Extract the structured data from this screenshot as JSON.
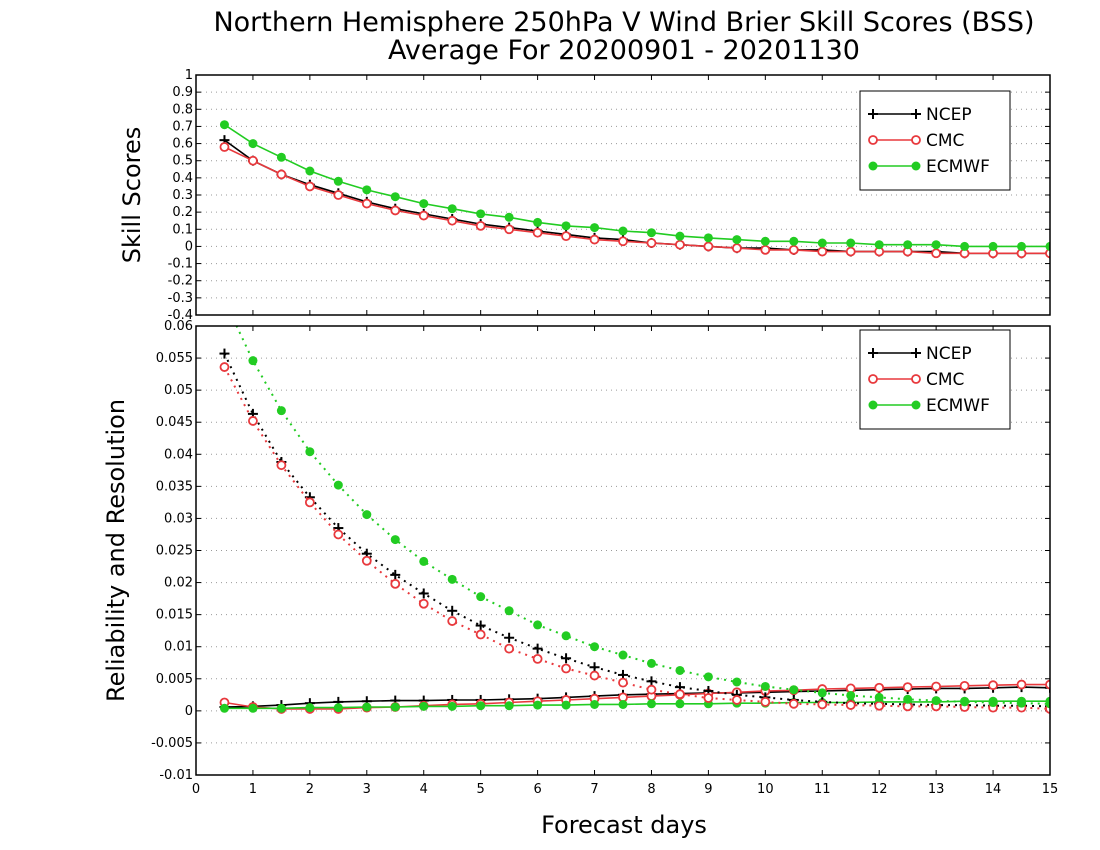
{
  "title_line1": "Northern Hemisphere 250hPa V Wind Brier Skill Scores (BSS)",
  "title_line2": "Average For 20200901 - 20201130",
  "xlabel": "Forecast days",
  "colors": {
    "NCEP": "#000000",
    "CMC": "#e8393d",
    "ECMWF": "#22cc22"
  },
  "chart_data": [
    {
      "type": "line",
      "ylabel": "Skill Scores",
      "xlim": [
        0,
        15
      ],
      "ylim": [
        -0.4,
        1
      ],
      "xticks": [
        "0",
        "1",
        "2",
        "3",
        "4",
        "5",
        "6",
        "7",
        "8",
        "9",
        "10",
        "11",
        "12",
        "13",
        "14",
        "15"
      ],
      "yticks": [
        "-0.4",
        "-0.3",
        "-0.2",
        "-0.1",
        "0",
        "0.1",
        "0.2",
        "0.3",
        "0.4",
        "0.5",
        "0.6",
        "0.7",
        "0.8",
        "0.9",
        "1"
      ],
      "grid": true,
      "legend_position": "top-right",
      "x": [
        0.5,
        1,
        1.5,
        2,
        2.5,
        3,
        3.5,
        4,
        4.5,
        5,
        5.5,
        6,
        6.5,
        7,
        7.5,
        8,
        8.5,
        9,
        9.5,
        10,
        10.5,
        11,
        11.5,
        12,
        12.5,
        13,
        13.5,
        14,
        14.5,
        15
      ],
      "series": [
        {
          "name": "NCEP",
          "style": "solid",
          "marker": "plus",
          "values": [
            0.62,
            0.5,
            0.42,
            0.36,
            0.31,
            0.26,
            0.22,
            0.19,
            0.16,
            0.13,
            0.11,
            0.09,
            0.07,
            0.05,
            0.04,
            0.02,
            0.01,
            0.0,
            -0.01,
            -0.01,
            -0.02,
            -0.02,
            -0.03,
            -0.03,
            -0.03,
            -0.03,
            -0.04,
            -0.04,
            -0.04,
            -0.04
          ]
        },
        {
          "name": "CMC",
          "style": "solid",
          "marker": "circle-open",
          "values": [
            0.58,
            0.5,
            0.42,
            0.35,
            0.3,
            0.25,
            0.21,
            0.18,
            0.15,
            0.12,
            0.1,
            0.08,
            0.06,
            0.04,
            0.03,
            0.02,
            0.01,
            0.0,
            -0.01,
            -0.02,
            -0.02,
            -0.03,
            -0.03,
            -0.03,
            -0.03,
            -0.04,
            -0.04,
            -0.04,
            -0.04,
            -0.04
          ]
        },
        {
          "name": "ECMWF",
          "style": "solid",
          "marker": "circle-filled",
          "values": [
            0.71,
            0.6,
            0.52,
            0.44,
            0.38,
            0.33,
            0.29,
            0.25,
            0.22,
            0.19,
            0.17,
            0.14,
            0.12,
            0.11,
            0.09,
            0.08,
            0.06,
            0.05,
            0.04,
            0.03,
            0.03,
            0.02,
            0.02,
            0.01,
            0.01,
            0.01,
            0.0,
            0.0,
            0.0,
            0.0
          ]
        }
      ]
    },
    {
      "type": "line",
      "ylabel": "Reliability and Resolution",
      "xlim": [
        0,
        15
      ],
      "ylim": [
        -0.01,
        0.06
      ],
      "xticks": [
        "0",
        "1",
        "2",
        "3",
        "4",
        "5",
        "6",
        "7",
        "8",
        "9",
        "10",
        "11",
        "12",
        "13",
        "14",
        "15"
      ],
      "yticks": [
        "-0.01",
        "-0.005",
        "0",
        "0.005",
        "0.01",
        "0.015",
        "0.02",
        "0.025",
        "0.03",
        "0.035",
        "0.04",
        "0.045",
        "0.05",
        "0.055",
        "0.06"
      ],
      "grid": true,
      "legend_position": "top-right",
      "x": [
        0.5,
        1,
        1.5,
        2,
        2.5,
        3,
        3.5,
        4,
        4.5,
        5,
        5.5,
        6,
        6.5,
        7,
        7.5,
        8,
        8.5,
        9,
        9.5,
        10,
        10.5,
        11,
        11.5,
        12,
        12.5,
        13,
        13.5,
        14,
        14.5,
        15
      ],
      "series": [
        {
          "name": "NCEP",
          "legend": true,
          "style": "solid",
          "marker": "plus",
          "values": [
            0.0006,
            0.0007,
            0.0009,
            0.0012,
            0.0014,
            0.0015,
            0.0016,
            0.0016,
            0.0017,
            0.0017,
            0.0018,
            0.0019,
            0.0021,
            0.0023,
            0.0025,
            0.0026,
            0.0027,
            0.0028,
            0.0028,
            0.0029,
            0.003,
            0.0031,
            0.0032,
            0.0033,
            0.0034,
            0.0035,
            0.0035,
            0.0036,
            0.0037,
            0.0036
          ]
        },
        {
          "name": "CMC",
          "legend": true,
          "style": "solid",
          "marker": "circle-open",
          "values": [
            0.0013,
            0.0006,
            0.0003,
            0.0003,
            0.0003,
            0.0005,
            0.0006,
            0.0008,
            0.001,
            0.0011,
            0.0013,
            0.0015,
            0.0017,
            0.0019,
            0.0021,
            0.0023,
            0.0025,
            0.0027,
            0.0029,
            0.0031,
            0.0032,
            0.0034,
            0.0035,
            0.0036,
            0.0037,
            0.0038,
            0.0039,
            0.004,
            0.0041,
            0.0041
          ]
        },
        {
          "name": "ECMWF",
          "legend": true,
          "style": "solid",
          "marker": "circle-filled",
          "values": [
            0.0004,
            0.0004,
            0.0004,
            0.0005,
            0.0005,
            0.0006,
            0.0006,
            0.0007,
            0.0007,
            0.0008,
            0.0008,
            0.0009,
            0.0009,
            0.001,
            0.001,
            0.0011,
            0.0011,
            0.0011,
            0.0012,
            0.0012,
            0.0013,
            0.0013,
            0.0013,
            0.0014,
            0.0014,
            0.0014,
            0.0015,
            0.0015,
            0.0015,
            0.0015
          ]
        },
        {
          "name": "NCEP",
          "legend": false,
          "style": "dotted",
          "marker": "plus",
          "values": [
            0.0557,
            0.0463,
            0.0388,
            0.0333,
            0.0285,
            0.0245,
            0.0212,
            0.0183,
            0.0156,
            0.0133,
            0.0114,
            0.0097,
            0.0082,
            0.0068,
            0.0056,
            0.0046,
            0.0037,
            0.0031,
            0.0025,
            0.0021,
            0.0017,
            0.0014,
            0.0012,
            0.0011,
            0.001,
            0.0009,
            0.0009,
            0.0008,
            0.0008,
            0.0007
          ]
        },
        {
          "name": "CMC",
          "legend": false,
          "style": "dotted",
          "marker": "circle-open",
          "values": [
            0.0536,
            0.0452,
            0.0383,
            0.0325,
            0.0275,
            0.0234,
            0.0198,
            0.0167,
            0.014,
            0.0119,
            0.0097,
            0.0081,
            0.0066,
            0.0055,
            0.0044,
            0.0033,
            0.0026,
            0.002,
            0.0017,
            0.0014,
            0.0011,
            0.001,
            0.0009,
            0.0008,
            0.0007,
            0.0007,
            0.0006,
            0.0005,
            0.0005,
            0.0003
          ]
        },
        {
          "name": "ECMWF",
          "legend": false,
          "style": "dotted",
          "marker": "circle-filled",
          "values": [
            0.064,
            0.0546,
            0.0468,
            0.0404,
            0.0352,
            0.0306,
            0.0267,
            0.0233,
            0.0205,
            0.0178,
            0.0156,
            0.0134,
            0.0117,
            0.01,
            0.0087,
            0.0074,
            0.0063,
            0.0053,
            0.0045,
            0.0038,
            0.0033,
            0.0028,
            0.0024,
            0.0021,
            0.0018,
            0.0016,
            0.0014,
            0.0013,
            0.0012,
            0.0011
          ]
        }
      ]
    }
  ]
}
